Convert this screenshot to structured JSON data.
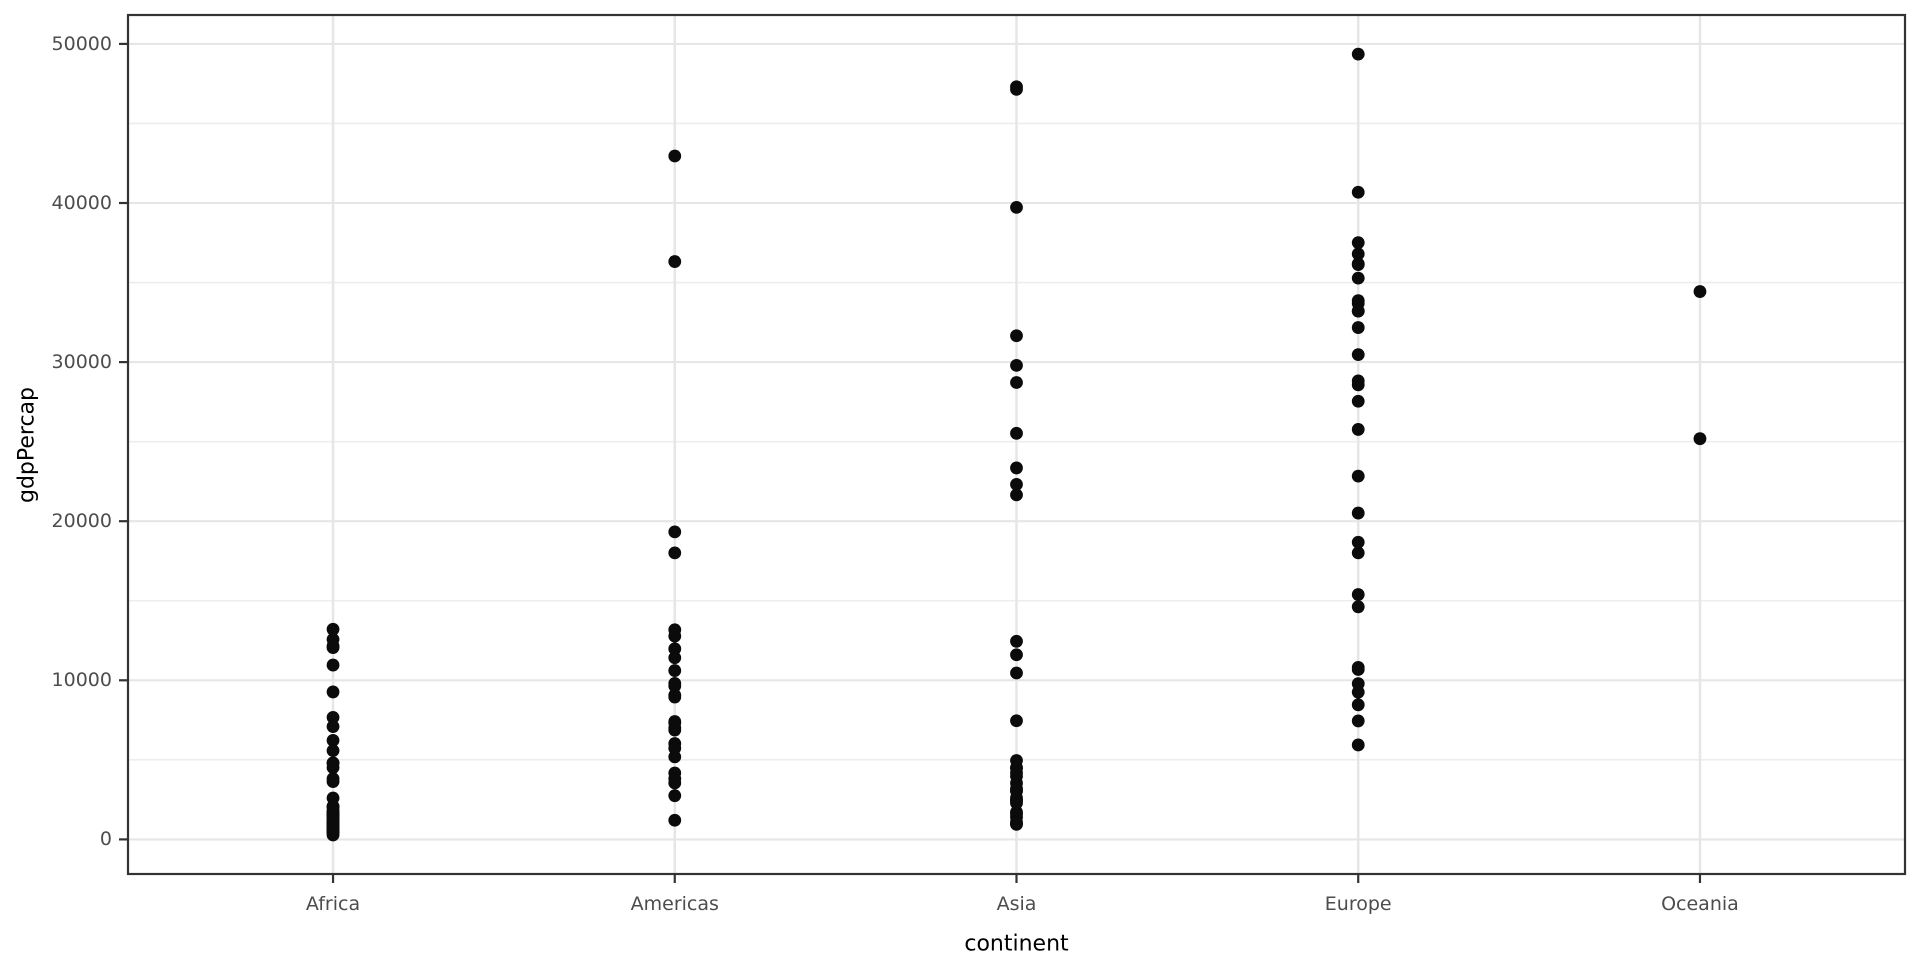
{
  "chart_data": {
    "type": "scatter",
    "title": "",
    "xlabel": "continent",
    "ylabel": "gdpPercap",
    "categories": [
      "Africa",
      "Americas",
      "Asia",
      "Europe",
      "Oceania"
    ],
    "y_ticks": [
      0,
      10000,
      20000,
      30000,
      40000,
      50000
    ],
    "y_tick_labels": [
      "0",
      "10000",
      "20000",
      "30000",
      "40000",
      "50000"
    ],
    "y_minor_ticks": [
      5000,
      15000,
      25000,
      35000,
      45000
    ],
    "ylim": [
      0,
      50000
    ],
    "grid": true,
    "legend_position": "none",
    "series": [
      {
        "name": "Africa",
        "values": [
          6223,
          4797,
          1441,
          12570,
          1217,
          430,
          2042,
          706,
          1704,
          986,
          278,
          3633,
          1545,
          2082,
          5581,
          12154,
          641,
          691,
          13206,
          753,
          1328,
          943,
          579,
          1463,
          1569,
          415,
          12057,
          1045,
          759,
          1043,
          1803,
          10957,
          3820,
          824,
          4811,
          620,
          2014,
          7670,
          863,
          1598,
          1712,
          863,
          926,
          9270,
          2602,
          4513,
          1107,
          883,
          7093,
          1056,
          1271,
          470
        ]
      },
      {
        "name": "Americas",
        "values": [
          12779,
          3822,
          9066,
          36319,
          13172,
          7007,
          9645,
          8948,
          6025,
          6873,
          5728,
          5186,
          1202,
          3548,
          7321,
          11978,
          2749,
          9809,
          4173,
          7409,
          19329,
          18009,
          42952,
          10611,
          11416
        ]
      },
      {
        "name": "Asia",
        "values": [
          975,
          29796,
          1391,
          1714,
          4959,
          39725,
          2452,
          3541,
          11606,
          4471,
          25523,
          31656,
          4519,
          1593,
          23348,
          47307,
          10461,
          12452,
          3096,
          944,
          1091,
          22316,
          2606,
          3190,
          21655,
          47143,
          3970,
          4185,
          28718,
          7458,
          2442,
          3025,
          2281
        ]
      },
      {
        "name": "Europe",
        "values": [
          5937,
          36126,
          33693,
          7446,
          10681,
          14619,
          22833,
          35278,
          33207,
          30470,
          32170,
          27538,
          18009,
          36181,
          40676,
          28570,
          9254,
          36798,
          49357,
          15390,
          20510,
          10808,
          9787,
          18678,
          25768,
          28821,
          33860,
          37506,
          8458,
          33203
        ]
      },
      {
        "name": "Oceania",
        "values": [
          34435,
          25185
        ]
      }
    ],
    "colors": {
      "point": "#0b0b0b",
      "grid_major": "#e6e6e6",
      "grid_minor": "#ededed",
      "panel_border": "#333333",
      "tick_mark": "#333333",
      "tick_label": "#4d4d4d",
      "axis_title": "#000000",
      "background": "#ffffff"
    }
  }
}
